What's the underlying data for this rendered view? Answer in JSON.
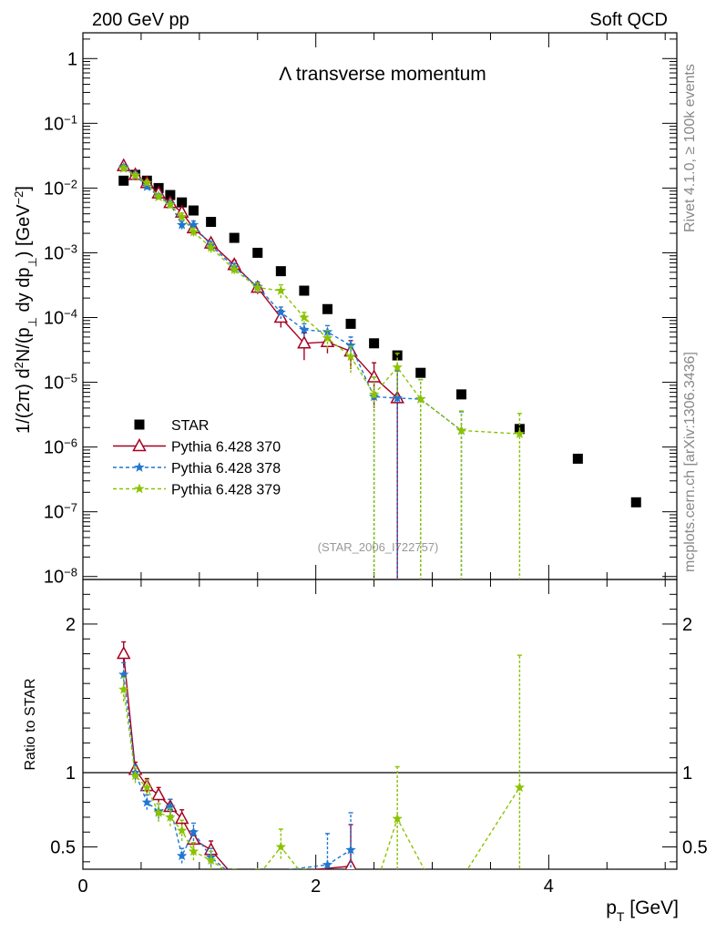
{
  "header": {
    "left": "200 GeV pp",
    "right": "Soft QCD"
  },
  "side_labels": {
    "rivet": "Rivet 4.1.0, ≥ 100k events",
    "mcplots": "mcplots.cern.ch [arXiv:1306.3436]"
  },
  "watermark": "(STAR_2006_I722757)",
  "colors": {
    "star": "#000000",
    "p370": "#a50021",
    "p378": "#1f77d0",
    "p379": "#8bc300",
    "axis": "#000000",
    "side": "#888888"
  },
  "chart_data": [
    {
      "type": "scatter",
      "scale": "log",
      "title": "Λ transverse momentum",
      "ylabel": "1/(2π)   d²N/(p⊥ dy dp⊥) [GeV⁻²]",
      "ylabel_parts": {
        "a": "1/(2",
        "pi": "π",
        "b": ")   d",
        "sup": "2",
        "c": "N/(p",
        "sub1": "⊥",
        "d": " dy dp",
        "sub2": "⊥",
        "e": ") [GeV",
        "sup2": "−2",
        "f": "]"
      },
      "xlim": [
        0,
        5.1
      ],
      "ylim": [
        9e-09,
        2.5
      ],
      "yticks": [
        {
          "v": 1,
          "base": "1",
          "exp": ""
        },
        {
          "v": 0.1,
          "base": "10",
          "exp": "−1"
        },
        {
          "v": 0.01,
          "base": "10",
          "exp": "−2"
        },
        {
          "v": 0.001,
          "base": "10",
          "exp": "−3"
        },
        {
          "v": 0.0001,
          "base": "10",
          "exp": "−4"
        },
        {
          "v": 1e-05,
          "base": "10",
          "exp": "−5"
        },
        {
          "v": 1e-06,
          "base": "10",
          "exp": "−6"
        },
        {
          "v": 1e-07,
          "base": "10",
          "exp": "−7"
        },
        {
          "v": 1e-08,
          "base": "10",
          "exp": "−8"
        }
      ],
      "legend": [
        "STAR",
        "Pythia 6.428 370",
        "Pythia 6.428 378",
        "Pythia 6.428 379"
      ],
      "series": [
        {
          "name": "STAR",
          "key": "star",
          "style": "square",
          "x": [
            0.35,
            0.45,
            0.55,
            0.65,
            0.75,
            0.85,
            0.95,
            1.1,
            1.3,
            1.5,
            1.7,
            1.9,
            2.1,
            2.3,
            2.5,
            2.7,
            2.9,
            3.25,
            3.75,
            4.25,
            4.75
          ],
          "y": [
            0.013,
            0.016,
            0.013,
            0.01,
            0.0078,
            0.006,
            0.0045,
            0.003,
            0.0017,
            0.001,
            0.00052,
            0.00026,
            0.000135,
            8e-05,
            4e-05,
            2.6e-05,
            1.4e-05,
            6.5e-06,
            1.9e-06,
            6.6e-07,
            1.4e-07
          ],
          "lo": [],
          "hi": []
        },
        {
          "name": "Pythia 6.428 370",
          "key": "p370",
          "style": "triangle",
          "x": [
            0.35,
            0.45,
            0.55,
            0.65,
            0.75,
            0.85,
            0.95,
            1.1,
            1.3,
            1.5,
            1.7,
            1.9,
            2.1,
            2.3,
            2.5,
            2.7
          ],
          "y": [
            0.022,
            0.016,
            0.012,
            0.0083,
            0.0059,
            0.0042,
            0.0024,
            0.0014,
            0.00065,
            0.00029,
            0.0001,
            4e-05,
            4.2e-05,
            3e-05,
            1.2e-05,
            5.7e-06
          ],
          "lo": [
            0.02,
            0.0148,
            0.011,
            0.0076,
            0.0053,
            0.0036,
            0.002,
            0.0012,
            0.00055,
            0.00023,
            7e-05,
            2.2e-05,
            2.8e-05,
            1.6e-05,
            4e-06,
            0
          ],
          "hi": [
            0.024,
            0.0172,
            0.013,
            0.009,
            0.0065,
            0.0048,
            0.0028,
            0.0016,
            0.00076,
            0.00035,
            0.00013,
            5.8e-05,
            5.6e-05,
            4.4e-05,
            2e-05,
            1.5e-05
          ]
        },
        {
          "name": "Pythia 6.428 378",
          "key": "p378",
          "style": "star",
          "x": [
            0.35,
            0.45,
            0.55,
            0.65,
            0.75,
            0.85,
            0.95,
            1.1,
            1.3,
            1.5,
            1.7,
            1.9,
            2.1,
            2.3,
            2.5,
            2.7,
            2.9,
            3.25
          ],
          "y": [
            0.021,
            0.016,
            0.0105,
            0.0075,
            0.0057,
            0.0027,
            0.0027,
            0.0013,
            0.0006,
            0.0003,
            0.00012,
            6.5e-05,
            6e-05,
            3.7e-05,
            6e-06,
            5.7e-06,
            5.5e-06,
            1.8e-06
          ],
          "lo": [
            0.019,
            0.0145,
            0.0095,
            0.0068,
            0.005,
            0.0023,
            0.0023,
            0.0011,
            0.00052,
            0.00025,
            9.5e-05,
            5e-05,
            4.5e-05,
            2.5e-05,
            0,
            0,
            0,
            0
          ],
          "hi": [
            0.023,
            0.0175,
            0.0115,
            0.0082,
            0.0064,
            0.0031,
            0.0031,
            0.0015,
            0.00068,
            0.00035,
            0.000145,
            8e-05,
            7.5e-05,
            5e-05,
            1.2e-05,
            1.5e-05,
            1.1e-05,
            3.5e-06
          ]
        },
        {
          "name": "Pythia 6.428 379",
          "key": "p379",
          "style": "star",
          "x": [
            0.35,
            0.45,
            0.55,
            0.65,
            0.75,
            0.85,
            0.95,
            1.1,
            1.3,
            1.5,
            1.7,
            1.9,
            2.1,
            2.3,
            2.5,
            2.7,
            2.9,
            3.25,
            3.75
          ],
          "y": [
            0.02,
            0.0155,
            0.012,
            0.0073,
            0.0055,
            0.0036,
            0.0021,
            0.0012,
            0.00055,
            0.00029,
            0.00026,
            0.0001,
            4.8e-05,
            2.5e-05,
            6.5e-06,
            1.7e-05,
            5.5e-06,
            1.8e-06,
            1.6e-06
          ],
          "lo": [
            0.018,
            0.014,
            0.011,
            0.0066,
            0.0049,
            0.0031,
            0.0018,
            0.001,
            0.00047,
            0.00024,
            0.0002,
            8e-05,
            3.3e-05,
            1.4e-05,
            0,
            6e-06,
            0,
            0,
            0
          ],
          "hi": [
            0.022,
            0.017,
            0.013,
            0.008,
            0.0061,
            0.0041,
            0.0024,
            0.0014,
            0.00063,
            0.00034,
            0.00032,
            0.00012,
            6.3e-05,
            3.6e-05,
            1.2e-05,
            2.8e-05,
            1.1e-05,
            3.6e-06,
            3.3e-06
          ]
        }
      ]
    },
    {
      "type": "line",
      "scale": "linear",
      "ylabel": "Ratio to STAR",
      "xlabel": "p_T [GeV]",
      "xlabel_parts": {
        "p": "p",
        "sub": "T",
        "unit": " [GeV]"
      },
      "xlim": [
        0,
        5.1
      ],
      "ylim": [
        0.35,
        2.3
      ],
      "xticks": [
        0,
        2,
        4
      ],
      "yticks": [
        0.5,
        1,
        2
      ],
      "xtick_labels": [
        "0",
        "2",
        "4"
      ],
      "ytick_labels": [
        "0.5",
        "1",
        "2"
      ],
      "reference_line": 1,
      "series": [
        {
          "key": "p370",
          "style": "triangle",
          "x": [
            0.35,
            0.45,
            0.55,
            0.65,
            0.75,
            0.85,
            0.95,
            1.1,
            1.3,
            2.3
          ],
          "y": [
            1.8,
            1.02,
            0.91,
            0.85,
            0.77,
            0.69,
            0.55,
            0.48,
            0.3,
            0.37
          ],
          "lo": [
            1.72,
            0.97,
            0.86,
            0.8,
            0.72,
            0.63,
            0.49,
            0.42,
            0.25,
            0.32
          ],
          "hi": [
            1.88,
            1.07,
            0.96,
            0.9,
            0.82,
            0.75,
            0.61,
            0.54,
            0.35,
            0.65
          ]
        },
        {
          "key": "p378",
          "style": "star",
          "x": [
            0.35,
            0.45,
            0.55,
            0.65,
            0.75,
            0.85,
            0.95,
            1.1,
            1.3,
            2.1,
            2.3
          ],
          "y": [
            1.66,
            1.0,
            0.8,
            0.74,
            0.77,
            0.44,
            0.6,
            0.43,
            0.3,
            0.38,
            0.48
          ],
          "lo": [
            1.58,
            0.95,
            0.75,
            0.69,
            0.72,
            0.39,
            0.54,
            0.37,
            0.25,
            0.3,
            0.3
          ],
          "hi": [
            1.74,
            1.05,
            0.85,
            0.79,
            0.82,
            0.49,
            0.66,
            0.49,
            0.35,
            0.59,
            0.73
          ]
        },
        {
          "key": "p379",
          "style": "star",
          "x": [
            0.35,
            0.45,
            0.55,
            0.65,
            0.75,
            0.85,
            0.95,
            1.1,
            1.3,
            1.5,
            1.7,
            1.9,
            2.5,
            2.7,
            3.1,
            3.75
          ],
          "y": [
            1.56,
            0.98,
            0.9,
            0.73,
            0.7,
            0.61,
            0.47,
            0.41,
            0.3,
            0.3,
            0.5,
            0.3,
            0.2,
            0.69,
            0.1,
            0.9
          ],
          "lo": [
            1.48,
            0.93,
            0.85,
            0.67,
            0.64,
            0.54,
            0.41,
            0.35,
            0.25,
            0.25,
            0.42,
            0.25,
            0.1,
            0.35,
            0.05,
            0.05
          ],
          "hi": [
            1.64,
            1.03,
            0.95,
            0.79,
            0.76,
            0.68,
            0.53,
            0.47,
            0.35,
            0.35,
            0.62,
            0.35,
            0.3,
            1.04,
            0.15,
            1.79
          ]
        }
      ]
    }
  ]
}
